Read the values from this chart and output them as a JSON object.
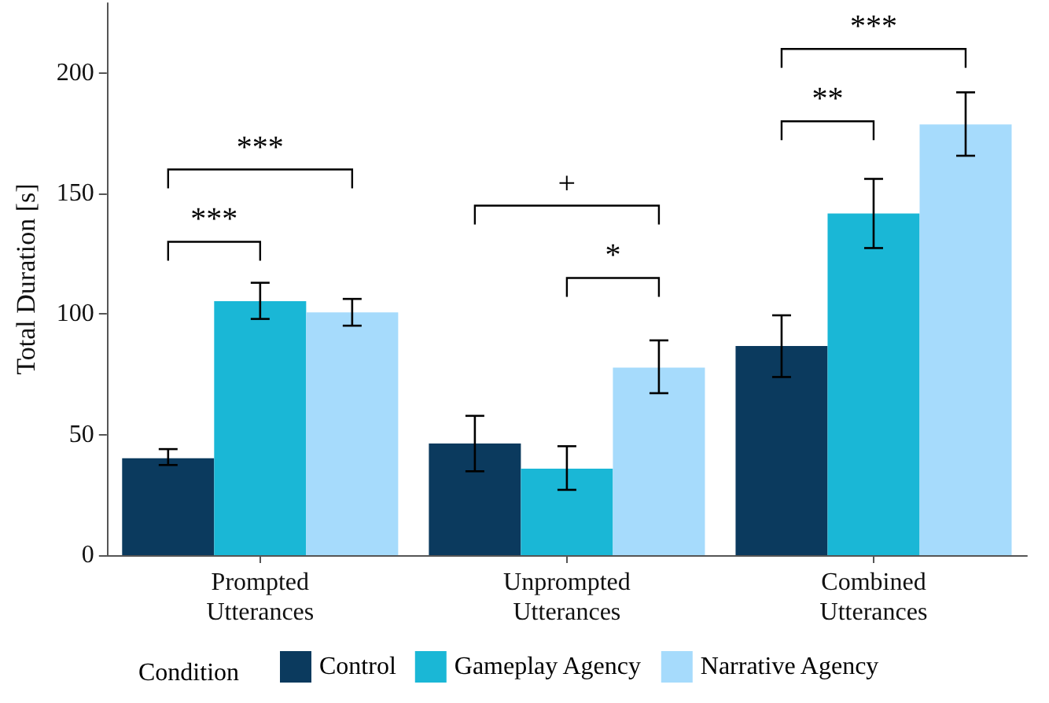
{
  "chart_data": {
    "type": "bar",
    "ylabel": "Total Duration [s]",
    "legend_title": "Condition",
    "categories": [
      "Prompted\nUtterances",
      "Unprompted\nUtterances",
      "Combined\nUtterances"
    ],
    "series": [
      {
        "name": "Control",
        "color": "#0b3a5e",
        "values": [
          40.2,
          46.3,
          86.8
        ],
        "errors": [
          [
            37.4,
            44
          ],
          [
            34.8,
            57.8
          ],
          [
            73.9,
            99.5
          ]
        ]
      },
      {
        "name": "Gameplay Agency",
        "color": "#1ab7d6",
        "values": [
          105.4,
          35.9,
          141.7
        ],
        "errors": [
          [
            98,
            113
          ],
          [
            27.1,
            45.2
          ],
          [
            127.4,
            156.1
          ]
        ]
      },
      {
        "name": "Narrative Agency",
        "color": "#a6dbfc",
        "values": [
          100.7,
          77.8,
          178.7
        ],
        "errors": [
          [
            95.2,
            106.3
          ],
          [
            67.2,
            89.1
          ],
          [
            165.7,
            192
          ]
        ]
      }
    ],
    "ylim": [
      0,
      229
    ],
    "yticks": [
      0,
      50,
      100,
      150,
      200
    ],
    "grid": false,
    "legend": "bottom",
    "annotations": [
      "***",
      "***",
      "+",
      "*",
      "**",
      "***"
    ]
  }
}
